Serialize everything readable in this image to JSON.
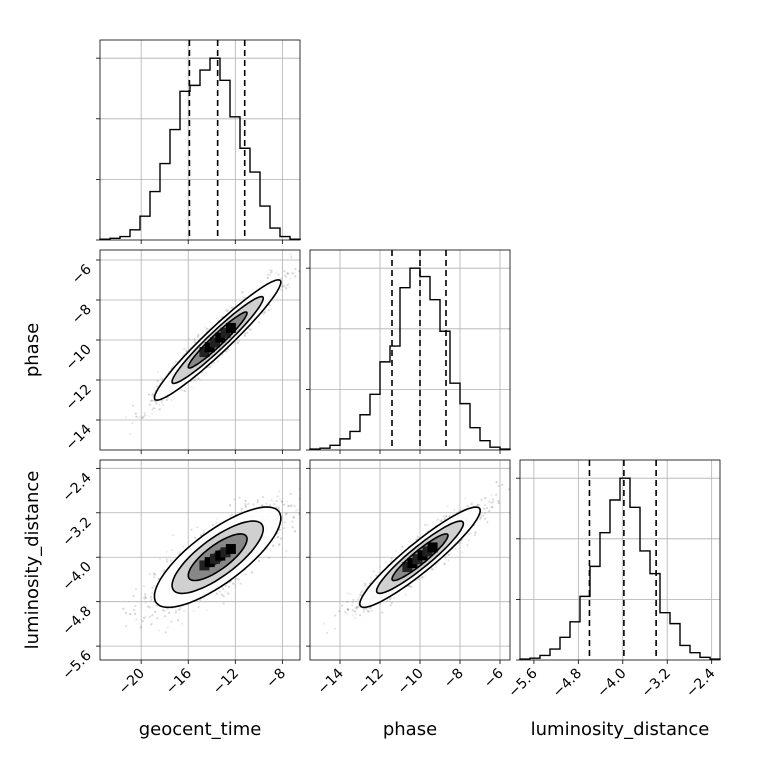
{
  "chart_data": {
    "type": "corner",
    "parameters": [
      "geocent_time",
      "phase",
      "luminosity_distance"
    ],
    "axis_labels": {
      "geocent_time": "geocent_time",
      "phase": "phase",
      "luminosity_distance": "luminosity_distance"
    },
    "ranges": {
      "geocent_time": [
        -23.5,
        -6.5
      ],
      "phase": [
        -15.5,
        -5.5
      ],
      "luminosity_distance": [
        -5.85,
        -2.25
      ]
    },
    "ticks": {
      "geocent_time": {
        "values": [
          -20,
          -16,
          -12,
          -8
        ],
        "labels": [
          "−20",
          "−16",
          "−12",
          "−8"
        ]
      },
      "phase": {
        "values": [
          -14,
          -12,
          -10,
          -8,
          -6
        ],
        "labels": [
          "−14",
          "−12",
          "−10",
          "−8",
          "−6"
        ]
      },
      "luminosity_distance": {
        "values": [
          -5.6,
          -4.8,
          -4.0,
          -3.2,
          -2.4
        ],
        "labels": [
          "−5.6",
          "−4.8",
          "−4.0",
          "−3.2",
          "−2.4"
        ]
      }
    },
    "marginals": {
      "geocent_time": {
        "bin_edges": [
          -23.5,
          -22.65,
          -21.8,
          -20.95,
          -20.1,
          -19.25,
          -18.4,
          -17.55,
          -16.7,
          -15.85,
          -15.0,
          -14.15,
          -13.3,
          -12.45,
          -11.6,
          -10.75,
          -9.9,
          -9.05,
          -8.2,
          -7.35,
          -6.5
        ],
        "counts": [
          1,
          2,
          4,
          12,
          28,
          57,
          90,
          130,
          175,
          182,
          200,
          214,
          188,
          145,
          108,
          80,
          40,
          14,
          4,
          1
        ],
        "quantiles": [
          -15.9,
          -13.5,
          -11.2
        ]
      },
      "phase": {
        "bin_edges": [
          -15.5,
          -15.0,
          -14.5,
          -14.0,
          -13.5,
          -13.0,
          -12.5,
          -12.0,
          -11.5,
          -11.0,
          -10.5,
          -10.0,
          -9.5,
          -9.0,
          -8.5,
          -8.0,
          -7.5,
          -7.0,
          -6.5,
          -6.0,
          -5.5
        ],
        "counts": [
          1,
          2,
          5,
          12,
          20,
          38,
          60,
          95,
          112,
          175,
          196,
          187,
          162,
          128,
          72,
          50,
          24,
          10,
          3,
          1
        ],
        "quantiles": [
          -11.4,
          -10.0,
          -8.7
        ]
      },
      "luminosity_distance": {
        "bin_edges": [
          -5.85,
          -5.67,
          -5.49,
          -5.31,
          -5.13,
          -4.95,
          -4.77,
          -4.59,
          -4.41,
          -4.23,
          -4.05,
          -3.87,
          -3.69,
          -3.51,
          -3.33,
          -3.15,
          -2.97,
          -2.79,
          -2.61,
          -2.43,
          -2.25
        ],
        "counts": [
          1,
          2,
          5,
          12,
          25,
          42,
          70,
          103,
          140,
          176,
          200,
          168,
          120,
          95,
          52,
          40,
          16,
          8,
          3,
          1
        ],
        "quantiles": [
          -4.6,
          -3.98,
          -3.4
        ]
      }
    },
    "joint": [
      {
        "x": "geocent_time",
        "y": "phase",
        "center": [
          -13.5,
          -10.0
        ],
        "sd": [
          2.5,
          1.4
        ],
        "rho": 0.96
      },
      {
        "x": "geocent_time",
        "y": "luminosity_distance",
        "center": [
          -13.5,
          -4.0
        ],
        "sd": [
          2.5,
          0.42
        ],
        "rho": 0.78
      },
      {
        "x": "phase",
        "y": "luminosity_distance",
        "center": [
          -10.0,
          -4.0
        ],
        "sd": [
          1.4,
          0.42
        ],
        "rho": 0.93
      }
    ],
    "grid": true
  }
}
